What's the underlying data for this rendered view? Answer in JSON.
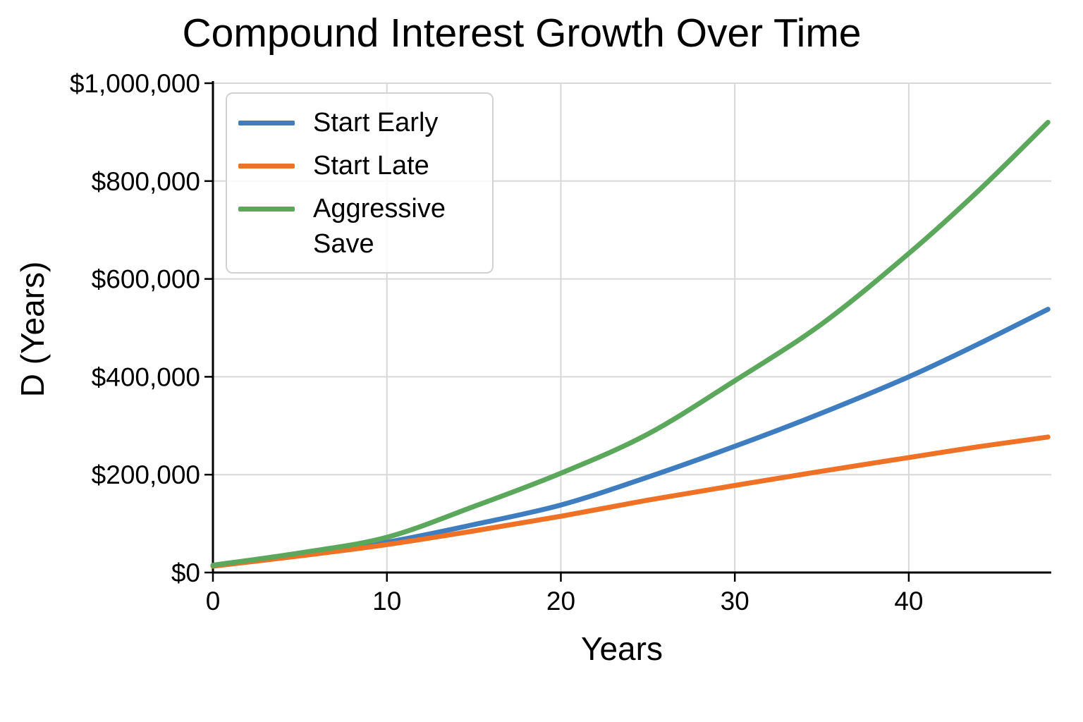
{
  "chart_data": {
    "type": "line",
    "title": "Compound Interest Growth Over Time",
    "xlabel": "Years",
    "ylabel": "D (Years)",
    "xlim": [
      0,
      48.15
    ],
    "ylim": [
      0,
      1000000
    ],
    "grid": true,
    "grid_color": "#d8d8d8",
    "axis_color": "#000000",
    "background_color": "#ffffff",
    "legend_position": "upper-left",
    "x_ticks": [
      0,
      10,
      20,
      30,
      40
    ],
    "x_tick_labels": [
      "0",
      "10",
      "20",
      "30",
      "40"
    ],
    "y_ticks": [
      0,
      200000,
      400000,
      600000,
      800000,
      1000000
    ],
    "y_tick_labels": [
      "$0",
      "$200,000",
      "$400,000",
      "$600,000",
      "$800,000",
      "$1,000,000"
    ],
    "x": [
      0,
      5,
      10,
      15,
      20,
      25,
      30,
      35,
      40,
      44,
      48
    ],
    "series": [
      {
        "name": "Start Early",
        "color": "#3E7DBF",
        "values": [
          14000,
          37000,
          62000,
          98000,
          138000,
          195000,
          258000,
          326000,
          400000,
          467000,
          538000
        ]
      },
      {
        "name": "Start Late",
        "color": "#EE7125",
        "values": [
          13000,
          34000,
          57000,
          85000,
          115000,
          148000,
          178000,
          207000,
          235000,
          257000,
          277000
        ]
      },
      {
        "name": "Aggressive Save",
        "color": "#5BA85C",
        "values": [
          15000,
          40000,
          72000,
          135000,
          203000,
          283000,
          392000,
          508000,
          652000,
          780000,
          920000
        ]
      }
    ]
  }
}
